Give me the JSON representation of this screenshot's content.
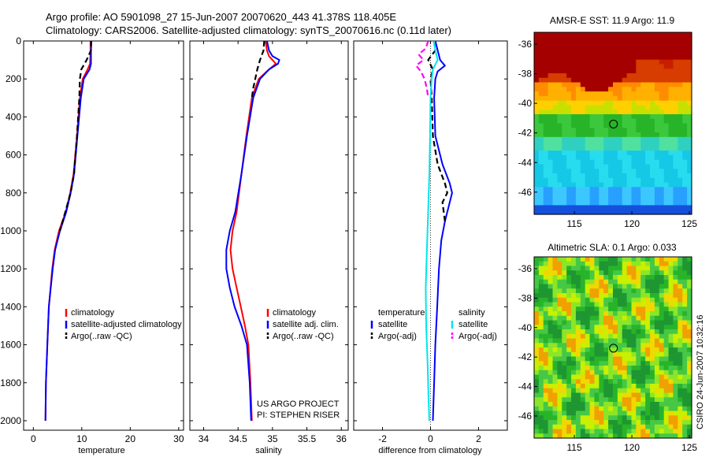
{
  "title": {
    "line1": "Argo profile: AO 5901098_27 15-Jun-2007 20070620_443 41.378S 118.405E",
    "line2": "Climatology: CARS2006. Satellite-adjusted climatology: synTS_20070616.nc (0.11d later)"
  },
  "colors": {
    "climatology": "#ff0000",
    "satellite": "#0000ff",
    "argo": "#000000",
    "salinity_satellite": "#00e5ee",
    "salinity_argo": "#ff00ff"
  },
  "annotation": {
    "line1": "US ARGO PROJECT",
    "line2": "PI: STEPHEN RISER"
  },
  "credit": "CSIRO 24-Jun-2007 10:32:16",
  "chart_data": [
    {
      "type": "line",
      "xlabel": "temperature",
      "ylabel": "",
      "xlim": [
        -2,
        31
      ],
      "ylim": [
        2050,
        0
      ],
      "x_ticks": [
        0,
        10,
        20,
        30
      ],
      "y_ticks": [
        0,
        200,
        400,
        600,
        800,
        1000,
        1200,
        1400,
        1600,
        1800,
        2000
      ],
      "legend": [
        "climatology",
        "satellite-adjusted climatology",
        "Argo(..raw -QC)"
      ],
      "legend_position": "lower-right",
      "series": [
        {
          "name": "climatology",
          "style": "solid",
          "color": "#ff0000",
          "depth": [
            0,
            50,
            120,
            150,
            200,
            300,
            500,
            700,
            800,
            900,
            1000,
            1100,
            1200,
            1400,
            1600,
            1800,
            2000
          ],
          "values": [
            11.8,
            11.8,
            11.7,
            11.2,
            10.2,
            9.6,
            9.0,
            8.3,
            7.6,
            6.7,
            5.3,
            4.4,
            3.9,
            3.2,
            2.9,
            2.6,
            2.5
          ]
        },
        {
          "name": "satellite-adjusted climatology",
          "style": "solid",
          "color": "#0000ff",
          "depth": [
            0,
            50,
            120,
            150,
            200,
            300,
            500,
            700,
            800,
            900,
            1000,
            1100,
            1200,
            1400,
            1600,
            1800,
            2000
          ],
          "values": [
            12.0,
            11.9,
            11.9,
            11.6,
            10.4,
            9.8,
            9.1,
            8.4,
            7.7,
            6.8,
            5.5,
            4.5,
            4.0,
            3.2,
            2.9,
            2.6,
            2.5
          ]
        },
        {
          "name": "Argo(..raw -QC)",
          "style": "dashed",
          "color": "#000000",
          "depth": [
            0,
            50,
            100,
            150,
            200,
            300,
            500,
            700,
            800,
            900,
            1000
          ],
          "values": [
            11.9,
            11.9,
            11.0,
            9.9,
            9.6,
            9.5,
            9.0,
            8.4,
            7.7,
            6.6,
            5.5
          ]
        }
      ]
    },
    {
      "type": "line",
      "xlabel": "salinity",
      "ylabel": "",
      "xlim": [
        33.8,
        36.1
      ],
      "ylim": [
        2050,
        0
      ],
      "x_ticks": [
        34,
        34.5,
        35,
        35.5,
        36
      ],
      "legend": [
        "climatology",
        "satellite adj. clim.",
        "Argo(..raw -QC)"
      ],
      "legend_position": "lower-right",
      "series": [
        {
          "name": "climatology",
          "style": "solid",
          "color": "#ff0000",
          "depth": [
            0,
            50,
            80,
            100,
            120,
            150,
            200,
            300,
            500,
            700,
            900,
            1000,
            1100,
            1200,
            1300,
            1400,
            1500,
            1600,
            1800,
            2000
          ],
          "values": [
            34.9,
            34.92,
            34.95,
            35.0,
            35.05,
            34.95,
            34.8,
            34.7,
            34.62,
            34.55,
            34.48,
            34.42,
            34.39,
            34.42,
            34.48,
            34.54,
            34.6,
            34.65,
            34.68,
            34.7
          ]
        },
        {
          "name": "satellite adj. clim.",
          "style": "solid",
          "color": "#0000ff",
          "depth": [
            0,
            50,
            80,
            100,
            120,
            150,
            200,
            300,
            500,
            700,
            900,
            1000,
            1100,
            1200,
            1300,
            1400,
            1500,
            1600,
            1800,
            2000
          ],
          "values": [
            34.92,
            34.95,
            35.0,
            35.1,
            35.08,
            34.95,
            34.82,
            34.72,
            34.63,
            34.55,
            34.46,
            34.38,
            34.33,
            34.33,
            34.38,
            34.45,
            34.55,
            34.63,
            34.67,
            34.69
          ]
        },
        {
          "name": "Argo(..raw -QC)",
          "style": "dashed",
          "color": "#000000",
          "depth": [
            0,
            50,
            100,
            150,
            200,
            250,
            300
          ],
          "values": [
            34.88,
            34.87,
            34.82,
            34.78,
            34.75,
            34.72,
            34.7
          ]
        }
      ]
    },
    {
      "type": "line",
      "xlabel": "difference from climatology",
      "ylabel": "",
      "xlim": [
        -3.2,
        3.2
      ],
      "ylim": [
        2050,
        0
      ],
      "x_ticks": [
        -2,
        0,
        2
      ],
      "legend_groups": [
        {
          "title": "temperature",
          "entries": [
            "satellite",
            "Argo(-adj)"
          ]
        },
        {
          "title": "salinity",
          "entries": [
            "satellite",
            "Argo(-adj)"
          ]
        }
      ],
      "legend_position": "lower-right",
      "series": [
        {
          "name": "temperature satellite",
          "style": "solid",
          "color": "#0000ff",
          "depth": [
            0,
            50,
            100,
            130,
            160,
            200,
            300,
            500,
            650,
            750,
            800,
            850,
            950,
            1050,
            1200,
            1400,
            1600,
            1800,
            2000
          ],
          "values": [
            0.2,
            0.3,
            0.4,
            0.6,
            0.3,
            0.2,
            0.15,
            0.2,
            0.5,
            0.8,
            0.9,
            0.8,
            0.6,
            0.45,
            0.35,
            0.28,
            0.2,
            0.15,
            0.1
          ]
        },
        {
          "name": "temperature Argo(-adj)",
          "style": "dashed",
          "color": "#000000",
          "depth": [
            0,
            50,
            100,
            150,
            200,
            300,
            500,
            650,
            750,
            800,
            850,
            950
          ],
          "values": [
            0.15,
            0.2,
            -0.1,
            0.1,
            0.0,
            0.05,
            0.1,
            0.3,
            0.6,
            0.7,
            0.5,
            0.6
          ]
        },
        {
          "name": "salinity satellite",
          "style": "solid",
          "color": "#00e5ee",
          "depth": [
            0,
            50,
            100,
            150,
            200,
            300,
            500,
            700,
            900,
            1100,
            1300,
            1500,
            1700,
            1900,
            2000
          ],
          "values": [
            0.15,
            0.2,
            0.3,
            0.1,
            0.05,
            0.0,
            -0.02,
            -0.05,
            -0.1,
            -0.15,
            -0.2,
            -0.18,
            -0.12,
            -0.08,
            -0.05
          ]
        },
        {
          "name": "salinity Argo(-adj)",
          "style": "dashed",
          "color": "#ff00ff",
          "depth": [
            0,
            40,
            70,
            100,
            130,
            160,
            200,
            250,
            300
          ],
          "values": [
            -0.1,
            -0.2,
            -0.5,
            -0.3,
            -0.6,
            -0.4,
            -0.25,
            -0.15,
            -0.1
          ]
        }
      ]
    },
    {
      "type": "heatmap",
      "title": "AMSR-E SST: 11.9 Argo: 11.9",
      "xlim": [
        111.5,
        125.2
      ],
      "ylim": [
        -47.5,
        -35.2
      ],
      "x_ticks": [
        115,
        120,
        125
      ],
      "y_ticks": [
        -36,
        -38,
        -40,
        -42,
        -44,
        -46
      ],
      "marker": {
        "lon": 118.4,
        "lat": -41.4
      }
    },
    {
      "type": "heatmap",
      "title": "Altimetric SLA: 0.1 Argo: 0.033",
      "xlim": [
        111.5,
        125.2
      ],
      "ylim": [
        -47.5,
        -35.2
      ],
      "x_ticks": [
        115,
        120,
        125
      ],
      "y_ticks": [
        -36,
        -38,
        -40,
        -42,
        -44,
        -46
      ],
      "marker": {
        "lon": 118.4,
        "lat": -41.4
      }
    }
  ]
}
